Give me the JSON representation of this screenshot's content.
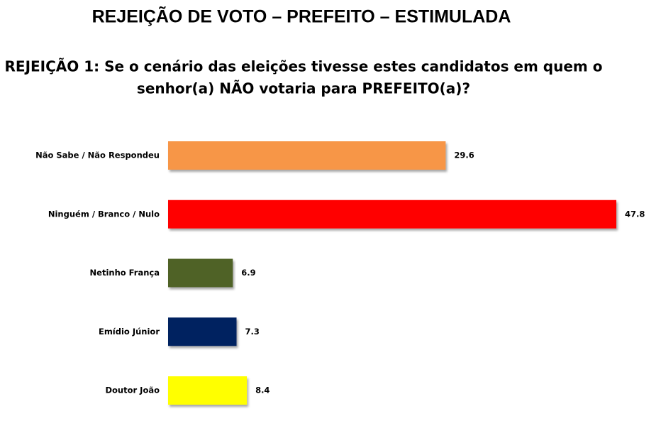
{
  "chart_data": {
    "type": "bar",
    "orientation": "horizontal",
    "title": "REJEIÇÃO DE VOTO – PREFEITO – ESTIMULADA",
    "subtitle": [
      "REJEIÇÃO 1: Se o cenário das eleições tivesse estes candidatos em quem o",
      "senhor(a) NÃO votaria para PREFEITO(a)?"
    ],
    "categories": [
      "Não Sabe / Não Respondeu",
      "Ninguém / Branco / Nulo",
      "Netinho França",
      "Emídio Júnior",
      "Doutor João"
    ],
    "values": [
      29.6,
      47.8,
      6.9,
      7.3,
      8.4
    ],
    "colors": [
      "#f79646",
      "#ff0000",
      "#4f6228",
      "#002060",
      "#ffff00"
    ]
  }
}
